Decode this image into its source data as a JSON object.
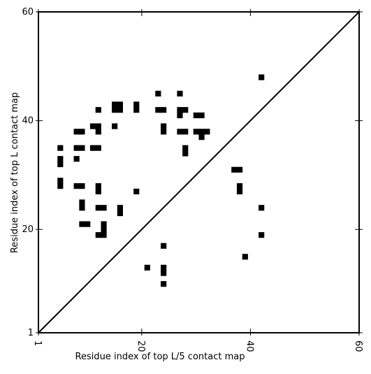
{
  "chart_data": {
    "type": "heatmap",
    "xlabel": "Residue index of top L/5 contact map",
    "ylabel": "Residue index of top L contact map",
    "xlim": [
      1,
      60
    ],
    "ylim": [
      1,
      60
    ],
    "x_ticks": [
      1,
      20,
      40,
      60
    ],
    "y_ticks": [
      1,
      20,
      40,
      60
    ],
    "x_tick_labels": [
      "1",
      "20",
      "40",
      "60"
    ],
    "y_tick_labels": [
      "1",
      "20",
      "40",
      "60"
    ],
    "diagonal": true,
    "colors": {
      "cell": "#000000",
      "background": "#ffffff",
      "axes": "#000000"
    },
    "upper_contacts": [
      [
        5,
        35
      ],
      [
        5,
        33
      ],
      [
        5,
        32
      ],
      [
        5,
        29
      ],
      [
        5,
        28
      ],
      [
        8,
        38
      ],
      [
        9,
        38
      ],
      [
        8,
        35
      ],
      [
        9,
        35
      ],
      [
        8,
        33
      ],
      [
        8,
        28
      ],
      [
        9,
        28
      ],
      [
        9,
        25
      ],
      [
        9,
        24
      ],
      [
        9,
        21
      ],
      [
        10,
        21
      ],
      [
        11,
        39
      ],
      [
        12,
        39
      ],
      [
        12,
        38
      ],
      [
        11,
        35
      ],
      [
        12,
        35
      ],
      [
        12,
        42
      ],
      [
        12,
        28
      ],
      [
        12,
        27
      ],
      [
        12,
        24
      ],
      [
        13,
        24
      ],
      [
        13,
        21
      ],
      [
        13,
        20
      ],
      [
        12,
        19
      ],
      [
        13,
        19
      ],
      [
        15,
        43
      ],
      [
        16,
        43
      ],
      [
        15,
        42
      ],
      [
        16,
        42
      ],
      [
        15,
        39
      ],
      [
        16,
        24
      ],
      [
        16,
        23
      ],
      [
        19,
        43
      ],
      [
        19,
        42
      ],
      [
        19,
        27
      ],
      [
        23,
        45
      ],
      [
        23,
        42
      ],
      [
        24,
        42
      ],
      [
        24,
        39
      ],
      [
        24,
        38
      ],
      [
        27,
        45
      ],
      [
        27,
        42
      ],
      [
        28,
        42
      ],
      [
        27,
        41
      ],
      [
        27,
        38
      ],
      [
        28,
        38
      ],
      [
        28,
        35
      ],
      [
        28,
        34
      ],
      [
        30,
        41
      ],
      [
        31,
        41
      ],
      [
        30,
        38
      ],
      [
        31,
        38
      ],
      [
        32,
        38
      ],
      [
        31,
        37
      ],
      [
        37,
        31
      ],
      [
        38,
        31
      ],
      [
        38,
        28
      ],
      [
        38,
        27
      ],
      [
        42,
        48
      ],
      [
        42,
        24
      ],
      [
        42,
        19
      ],
      [
        39,
        15
      ]
    ],
    "lower_contacts": [
      [
        21,
        13
      ],
      [
        24,
        17
      ],
      [
        24,
        13
      ],
      [
        24,
        12
      ],
      [
        24,
        10
      ]
    ]
  }
}
